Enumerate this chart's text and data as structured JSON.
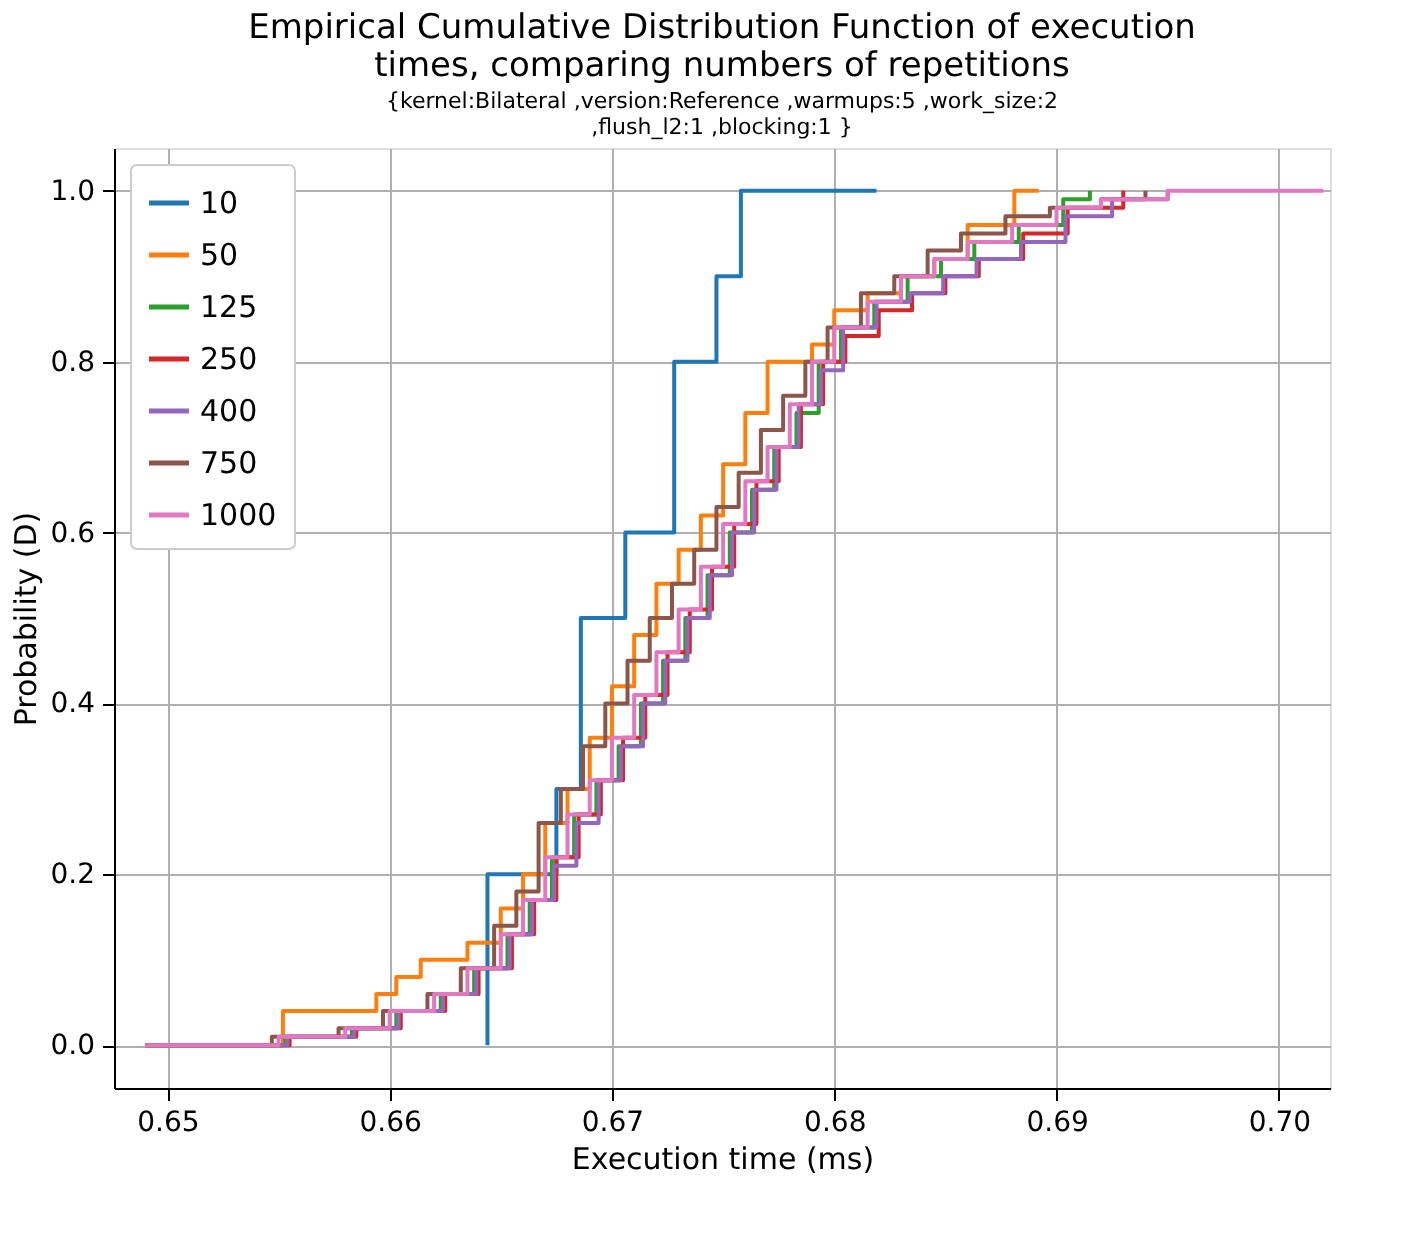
{
  "chart_data": {
    "type": "step",
    "title": "Empirical Cumulative Distribution Function of execution\ntimes, comparing numbers of repetitions",
    "subtitle": "{kernel:Bilateral ,version:Reference ,warmups:5 ,work_size:2\n,flush_l2:1 ,blocking:1 }",
    "xlabel": "Execution time (ms)",
    "ylabel": "Probability (D)",
    "xlim": [
      0.6476,
      0.7023
    ],
    "xticks": [
      0.65,
      0.66,
      0.67,
      0.68,
      0.69,
      {
        "value": 0.7,
        "label": "0.70"
      }
    ],
    "ylim": [
      -0.05,
      1.05
    ],
    "yticks": [
      {
        "value": 0,
        "label": "0.0"
      },
      0.2,
      0.4,
      0.6,
      0.8,
      {
        "value": 1,
        "label": "1.0"
      }
    ],
    "grid": true,
    "legend": "top left",
    "line_style": "solid",
    "marker": "none",
    "series": [
      {
        "name": "10",
        "color": "#1f77b4",
        "x": [
          0.6644,
          0.6644,
          0.6675,
          0.6686,
          0.6706,
          0.6728,
          0.6747,
          0.6758,
          0.6819
        ],
        "values": [
          0,
          0.2,
          0.3,
          0.5,
          0.6,
          0.8,
          0.9,
          1.0,
          1.0
        ]
      },
      {
        "name": "50",
        "color": "#ff7f0e",
        "x": [
          0.649,
          0.6552,
          0.6594,
          0.6603,
          0.6614,
          0.6635,
          0.665,
          0.666,
          0.667,
          0.668,
          0.669,
          0.67,
          0.671,
          0.672,
          0.673,
          0.674,
          0.675,
          0.676,
          0.677,
          0.678,
          0.679,
          0.68,
          0.6815,
          0.683,
          0.6845,
          0.686,
          0.6881,
          0.6892
        ],
        "values": [
          0,
          0.04,
          0.06,
          0.08,
          0.1,
          0.12,
          0.16,
          0.2,
          0.26,
          0.3,
          0.36,
          0.42,
          0.48,
          0.54,
          0.58,
          0.62,
          0.68,
          0.74,
          0.8,
          0.8,
          0.82,
          0.86,
          0.88,
          0.9,
          0.92,
          0.96,
          1.0,
          1.0
        ]
      },
      {
        "name": "125",
        "color": "#2ca02c",
        "x": [
          0.649,
          0.6553,
          0.6583,
          0.6603,
          0.6623,
          0.6638,
          0.6653,
          0.6663,
          0.6673,
          0.6683,
          0.6693,
          0.6703,
          0.6713,
          0.6723,
          0.6733,
          0.6743,
          0.6753,
          0.6763,
          0.6773,
          0.6783,
          0.6793,
          0.6803,
          0.6818,
          0.6833,
          0.6848,
          0.6863,
          0.6883,
          0.6903,
          0.6915
        ],
        "values": [
          0,
          0.01,
          0.02,
          0.04,
          0.06,
          0.09,
          0.13,
          0.17,
          0.22,
          0.27,
          0.31,
          0.35,
          0.4,
          0.45,
          0.5,
          0.55,
          0.6,
          0.65,
          0.7,
          0.74,
          0.8,
          0.84,
          0.87,
          0.9,
          0.92,
          0.94,
          0.96,
          0.99,
          1.0
        ]
      },
      {
        "name": "250",
        "color": "#d62728",
        "x": [
          0.649,
          0.6555,
          0.6585,
          0.6605,
          0.6625,
          0.664,
          0.6655,
          0.6665,
          0.6675,
          0.6685,
          0.6695,
          0.6705,
          0.6715,
          0.6725,
          0.6735,
          0.6745,
          0.6755,
          0.6765,
          0.6775,
          0.6785,
          0.6795,
          0.6805,
          0.682,
          0.6835,
          0.685,
          0.6865,
          0.6885,
          0.6905,
          0.693
        ],
        "values": [
          0,
          0.01,
          0.02,
          0.04,
          0.06,
          0.09,
          0.13,
          0.17,
          0.22,
          0.27,
          0.31,
          0.36,
          0.41,
          0.46,
          0.51,
          0.56,
          0.61,
          0.66,
          0.7,
          0.75,
          0.8,
          0.83,
          0.86,
          0.88,
          0.9,
          0.92,
          0.95,
          0.98,
          1.0
        ]
      },
      {
        "name": "400",
        "color": "#9467bd",
        "x": [
          0.649,
          0.6554,
          0.6584,
          0.6604,
          0.6624,
          0.6639,
          0.6654,
          0.6664,
          0.6674,
          0.6684,
          0.6694,
          0.6704,
          0.6714,
          0.6724,
          0.6734,
          0.6744,
          0.6754,
          0.6764,
          0.6774,
          0.6784,
          0.6794,
          0.6804,
          0.6819,
          0.6834,
          0.6849,
          0.6864,
          0.6884,
          0.6904,
          0.6925,
          0.695
        ],
        "values": [
          0,
          0.01,
          0.02,
          0.04,
          0.06,
          0.09,
          0.13,
          0.17,
          0.21,
          0.26,
          0.31,
          0.35,
          0.4,
          0.45,
          0.5,
          0.55,
          0.6,
          0.65,
          0.7,
          0.75,
          0.79,
          0.84,
          0.87,
          0.88,
          0.9,
          0.92,
          0.94,
          0.97,
          0.99,
          1.0
        ]
      },
      {
        "name": "750",
        "color": "#8c564b",
        "x": [
          0.649,
          0.6547,
          0.6577,
          0.6597,
          0.6617,
          0.6632,
          0.6647,
          0.6657,
          0.6667,
          0.6677,
          0.6687,
          0.6697,
          0.6707,
          0.6717,
          0.6727,
          0.6737,
          0.6747,
          0.6757,
          0.6767,
          0.6777,
          0.6787,
          0.6797,
          0.6812,
          0.6827,
          0.6842,
          0.6857,
          0.6877,
          0.6897,
          0.692,
          0.694
        ],
        "values": [
          0,
          0.01,
          0.02,
          0.04,
          0.06,
          0.09,
          0.14,
          0.18,
          0.26,
          0.3,
          0.35,
          0.4,
          0.45,
          0.5,
          0.54,
          0.58,
          0.63,
          0.67,
          0.72,
          0.76,
          0.8,
          0.84,
          0.88,
          0.9,
          0.93,
          0.95,
          0.97,
          0.98,
          0.99,
          1.0
        ]
      },
      {
        "name": "1000",
        "color": "#e377c2",
        "x": [
          0.649,
          0.655,
          0.658,
          0.66,
          0.662,
          0.6635,
          0.665,
          0.666,
          0.667,
          0.668,
          0.669,
          0.67,
          0.671,
          0.672,
          0.673,
          0.674,
          0.675,
          0.676,
          0.677,
          0.678,
          0.679,
          0.68,
          0.6815,
          0.683,
          0.6845,
          0.686,
          0.688,
          0.69,
          0.692,
          0.695,
          0.702
        ],
        "values": [
          0,
          0.01,
          0.02,
          0.04,
          0.06,
          0.09,
          0.13,
          0.17,
          0.22,
          0.27,
          0.31,
          0.36,
          0.41,
          0.46,
          0.51,
          0.56,
          0.61,
          0.66,
          0.7,
          0.75,
          0.8,
          0.84,
          0.87,
          0.9,
          0.92,
          0.94,
          0.96,
          0.98,
          0.99,
          1.0,
          1.0
        ]
      }
    ]
  }
}
